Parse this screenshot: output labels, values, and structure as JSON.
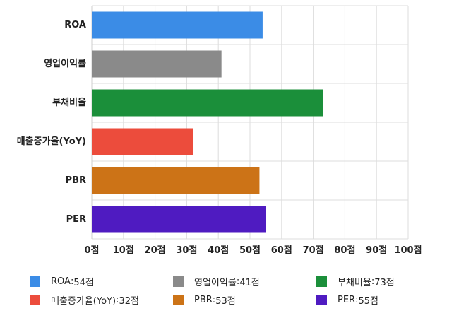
{
  "chart_data": {
    "type": "bar",
    "orientation": "horizontal",
    "categories": [
      "ROA",
      "영업이익률",
      "부채비율",
      "매출증가율(YoY)",
      "PBR",
      "PER"
    ],
    "values": [
      54,
      41,
      73,
      32,
      53,
      55
    ],
    "colors": [
      "#3b8ce6",
      "#8a8a8a",
      "#1b8f3a",
      "#ec4c3c",
      "#cc7317",
      "#4f1bc1"
    ],
    "xlim": [
      0,
      100
    ],
    "x_ticks": [
      0,
      10,
      20,
      30,
      40,
      50,
      60,
      70,
      80,
      90,
      100
    ],
    "x_tick_labels": [
      "0점",
      "10점",
      "20점",
      "30점",
      "40점",
      "50점",
      "60점",
      "70점",
      "80점",
      "90점",
      "100점"
    ],
    "grid": true,
    "legend_position": "bottom",
    "legend": [
      {
        "label": "ROA",
        "value": "54점",
        "color": "#3b8ce6"
      },
      {
        "label": "영업이익률",
        "value": "41점",
        "color": "#8a8a8a"
      },
      {
        "label": "부채비율",
        "value": "73점",
        "color": "#1b8f3a"
      },
      {
        "label": "매출증가율(YoY)",
        "value": "32점",
        "color": "#ec4c3c"
      },
      {
        "label": "PBR",
        "value": "53점",
        "color": "#cc7317"
      },
      {
        "label": "PER",
        "value": "55점",
        "color": "#4f1bc1"
      }
    ]
  }
}
